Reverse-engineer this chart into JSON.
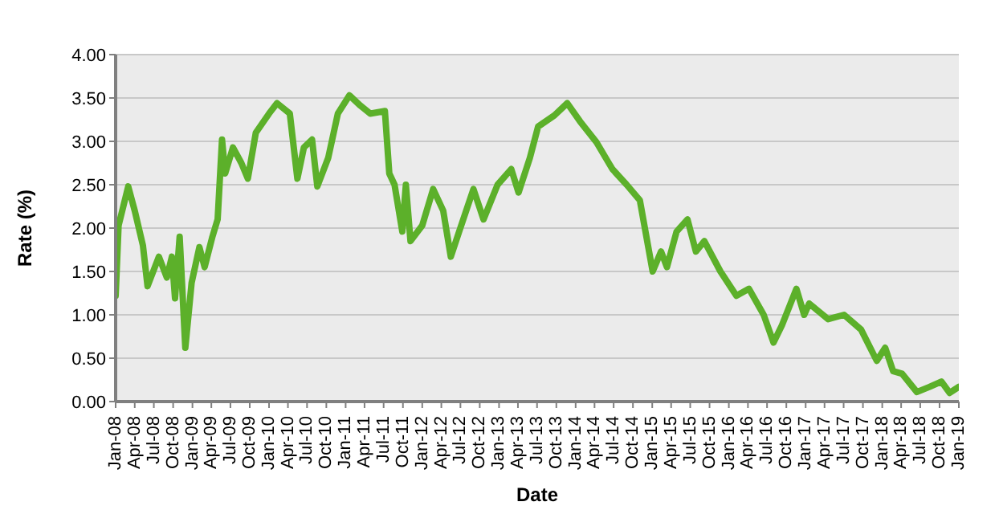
{
  "chart_data": {
    "type": "line",
    "xlabel": "Date",
    "ylabel": "Rate (%)",
    "x": [
      "2008-01-01",
      "2008-01-15",
      "2008-03-01",
      "2008-04-01",
      "2008-05-10",
      "2008-06-01",
      "2008-07-25",
      "2008-09-01",
      "2008-09-25",
      "2008-10-10",
      "2008-11-01",
      "2008-11-28",
      "2008-12-28",
      "2009-02-03",
      "2009-02-28",
      "2009-04-06",
      "2009-05-01",
      "2009-05-22",
      "2009-06-06",
      "2009-07-13",
      "2009-08-22",
      "2009-09-22",
      "2009-10-30",
      "2010-01-01",
      "2010-02-08",
      "2010-04-10",
      "2010-05-16",
      "2010-06-16",
      "2010-07-25",
      "2010-08-19",
      "2010-10-10",
      "2010-11-25",
      "2011-01-19",
      "2011-03-13",
      "2011-04-28",
      "2011-07-07",
      "2011-07-28",
      "2011-08-22",
      "2011-09-28",
      "2011-10-15",
      "2011-11-06",
      "2012-01-01",
      "2012-02-22",
      "2012-04-10",
      "2012-05-16",
      "2012-06-25",
      "2012-09-01",
      "2012-10-19",
      "2012-12-25",
      "2013-02-28",
      "2013-04-04",
      "2013-05-28",
      "2013-07-06",
      "2013-09-22",
      "2013-11-22",
      "2014-01-22",
      "2014-04-10",
      "2014-06-25",
      "2014-09-01",
      "2014-11-03",
      "2015-01-03",
      "2015-02-12",
      "2015-03-12",
      "2015-04-27",
      "2015-06-18",
      "2015-07-28",
      "2015-09-06",
      "2015-11-22",
      "2016-02-06",
      "2016-04-06",
      "2016-06-15",
      "2016-08-01",
      "2016-09-10",
      "2016-11-18",
      "2016-12-25",
      "2017-01-18",
      "2017-04-18",
      "2017-07-03",
      "2017-09-22",
      "2017-12-06",
      "2018-01-15",
      "2018-02-22",
      "2018-04-06",
      "2018-06-15",
      "2018-08-15",
      "2018-10-10",
      "2018-11-18",
      "2019-01-01"
    ],
    "values": [
      1.22,
      2.03,
      2.48,
      2.2,
      1.8,
      1.33,
      1.67,
      1.43,
      1.67,
      1.19,
      1.9,
      0.62,
      1.37,
      1.78,
      1.55,
      1.9,
      2.1,
      3.02,
      2.63,
      2.93,
      2.75,
      2.57,
      3.1,
      3.32,
      3.44,
      3.32,
      2.57,
      2.93,
      3.02,
      2.48,
      2.81,
      3.32,
      3.53,
      3.41,
      3.32,
      3.35,
      2.63,
      2.5,
      1.96,
      2.5,
      1.85,
      2.03,
      2.45,
      2.2,
      1.67,
      1.96,
      2.45,
      2.1,
      2.5,
      2.68,
      2.41,
      2.81,
      3.17,
      3.3,
      3.44,
      3.23,
      2.99,
      2.68,
      2.5,
      2.32,
      1.5,
      1.73,
      1.55,
      1.96,
      2.1,
      1.73,
      1.85,
      1.5,
      1.22,
      1.3,
      1.0,
      0.68,
      0.88,
      1.3,
      1.0,
      1.13,
      0.95,
      1.0,
      0.83,
      0.47,
      0.62,
      0.35,
      0.32,
      0.11,
      0.17,
      0.23,
      0.1,
      0.17
    ],
    "color": "#5cb02a",
    "xlim": [
      "2008-01",
      "2019-01"
    ],
    "xticks": [
      {
        "value": "2008-01",
        "label": "Jan-08"
      },
      {
        "value": "2008-04",
        "label": "Apr-08"
      },
      {
        "value": "2008-07",
        "label": "Jul-08"
      },
      {
        "value": "2008-10",
        "label": "Oct-08"
      },
      {
        "value": "2009-01",
        "label": "Jan-09"
      },
      {
        "value": "2009-04",
        "label": "Apr-09"
      },
      {
        "value": "2009-07",
        "label": "Jul-09"
      },
      {
        "value": "2009-10",
        "label": "Oct-09"
      },
      {
        "value": "2010-01",
        "label": "Jan-10"
      },
      {
        "value": "2010-04",
        "label": "Apr-10"
      },
      {
        "value": "2010-07",
        "label": "Jul-10"
      },
      {
        "value": "2010-10",
        "label": "Oct-10"
      },
      {
        "value": "2011-01",
        "label": "Jan-11"
      },
      {
        "value": "2011-04",
        "label": "Apr-11"
      },
      {
        "value": "2011-07",
        "label": "Jul-11"
      },
      {
        "value": "2011-10",
        "label": "Oct-11"
      },
      {
        "value": "2012-01",
        "label": "Jan-12"
      },
      {
        "value": "2012-04",
        "label": "Apr-12"
      },
      {
        "value": "2012-07",
        "label": "Jul-12"
      },
      {
        "value": "2012-10",
        "label": "Oct-12"
      },
      {
        "value": "2013-01",
        "label": "Jan-13"
      },
      {
        "value": "2013-04",
        "label": "Apr-13"
      },
      {
        "value": "2013-07",
        "label": "Jul-13"
      },
      {
        "value": "2013-10",
        "label": "Oct-13"
      },
      {
        "value": "2014-01",
        "label": "Jan-14"
      },
      {
        "value": "2014-04",
        "label": "Apr-14"
      },
      {
        "value": "2014-07",
        "label": "Jul-14"
      },
      {
        "value": "2014-10",
        "label": "Oct-14"
      },
      {
        "value": "2015-01",
        "label": "Jan-15"
      },
      {
        "value": "2015-04",
        "label": "Apr-15"
      },
      {
        "value": "2015-07",
        "label": "Jul-15"
      },
      {
        "value": "2015-10",
        "label": "Oct-15"
      },
      {
        "value": "2016-01",
        "label": "Jan-16"
      },
      {
        "value": "2016-04",
        "label": "Apr-16"
      },
      {
        "value": "2016-07",
        "label": "Jul-16"
      },
      {
        "value": "2016-10",
        "label": "Oct-16"
      },
      {
        "value": "2017-01",
        "label": "Jan-17"
      },
      {
        "value": "2017-04",
        "label": "Apr-17"
      },
      {
        "value": "2017-07",
        "label": "Jul-17"
      },
      {
        "value": "2017-10",
        "label": "Oct-17"
      },
      {
        "value": "2018-01",
        "label": "Jan-18"
      },
      {
        "value": "2018-04",
        "label": "Apr-18"
      },
      {
        "value": "2018-07",
        "label": "Jul-18"
      },
      {
        "value": "2018-10",
        "label": "Oct-18"
      },
      {
        "value": "2019-01",
        "label": "Jan-19"
      }
    ],
    "ylim": [
      0,
      4
    ],
    "yticks": [
      {
        "value": 0,
        "label": "0.00"
      },
      {
        "value": 0.5,
        "label": "0.50"
      },
      {
        "value": 1,
        "label": "1.00"
      },
      {
        "value": 1.5,
        "label": "1.50"
      },
      {
        "value": 2,
        "label": "2.00"
      },
      {
        "value": 2.5,
        "label": "2.50"
      },
      {
        "value": 3,
        "label": "3.00"
      },
      {
        "value": 3.5,
        "label": "3.50"
      },
      {
        "value": 4,
        "label": "4.00"
      }
    ],
    "grid": "y",
    "marker": "none",
    "line_style": "solid"
  }
}
